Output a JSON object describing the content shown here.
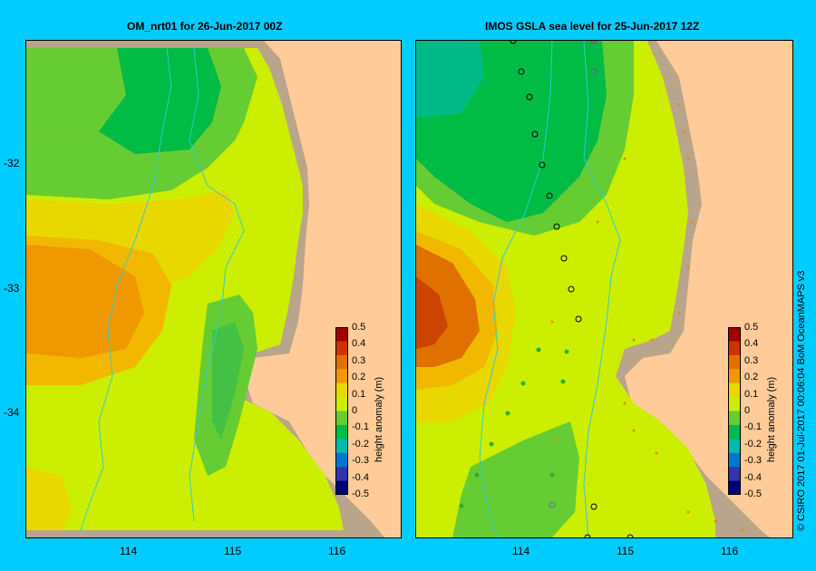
{
  "panels": [
    {
      "title": "OM_nrt01  for 26-Jun-2017 00Z"
    },
    {
      "title": "IMOS GSLA sea level  for 25-Jun-2017 12Z"
    }
  ],
  "axes": {
    "lat_labels": [
      "-32",
      "-33",
      "-34"
    ],
    "lon_labels": [
      "114",
      "115",
      "116"
    ]
  },
  "colorbar": {
    "ticks": [
      "0.5",
      "0.4",
      "0.3",
      "0.2",
      "0.1",
      "0",
      "-0.1",
      "-0.2",
      "-0.3",
      "-0.4",
      "-0.5"
    ],
    "title": "height anomaly (m)",
    "colors": [
      "#a00000",
      "#cc3300",
      "#e07000",
      "#f09800",
      "#e8d800",
      "#ccee00",
      "#66cc33",
      "#00bb44",
      "#00bbaa",
      "#0077cc",
      "#3333aa",
      "#000077"
    ]
  },
  "credit": "© CSIRO 2017   01-Jul-2017 00:06:04 BoM OceanMAPS v3",
  "colors": {
    "background": "#00ccff",
    "land": "#ffcc99",
    "shelf": "#b8a58c"
  }
}
